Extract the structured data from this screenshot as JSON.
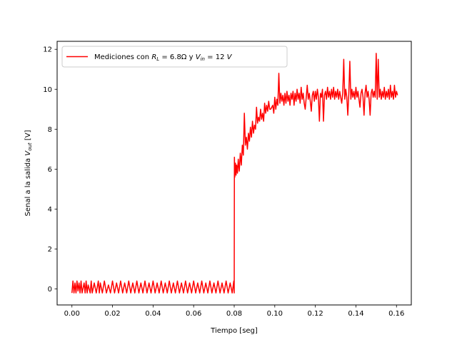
{
  "chart_data": {
    "type": "line",
    "title": "",
    "xlabel": "Tiempo [seg]",
    "ylabel_parts": [
      "Senal a la salida ",
      "V",
      "out",
      " [V]"
    ],
    "legend": {
      "placement": "upper-left",
      "parts": [
        "Mediciones con ",
        "R",
        "L",
        " = 6.8Ω y ",
        "V",
        "in",
        " = 12 ",
        "V"
      ]
    },
    "xlim": [
      -0.0073,
      0.1673
    ],
    "ylim": [
      -0.8,
      12.4
    ],
    "x_ticks": [
      0.0,
      0.02,
      0.04,
      0.06,
      0.08,
      0.1,
      0.12,
      0.14,
      0.16
    ],
    "x_tick_labels": [
      "0.00",
      "0.02",
      "0.04",
      "0.06",
      "0.08",
      "0.10",
      "0.12",
      "0.14",
      "0.16"
    ],
    "y_ticks": [
      0,
      2,
      4,
      6,
      8,
      10,
      12
    ],
    "y_tick_labels": [
      "0",
      "2",
      "4",
      "6",
      "8",
      "10",
      "12"
    ],
    "grid": false,
    "series": [
      {
        "name": "Mediciones con R_L = 6.8Ω y V_in = 12 V",
        "color": "#ff0000",
        "points": [
          [
            0.0,
            -0.2
          ],
          [
            0.0005,
            0.4
          ],
          [
            0.001,
            -0.2
          ],
          [
            0.0015,
            0.3
          ],
          [
            0.002,
            -0.2
          ],
          [
            0.0025,
            0.4
          ],
          [
            0.003,
            -0.1
          ],
          [
            0.0035,
            0.3
          ],
          [
            0.004,
            -0.2
          ],
          [
            0.0045,
            0.4
          ],
          [
            0.005,
            -0.2
          ],
          [
            0.006,
            0.3
          ],
          [
            0.0065,
            -0.2
          ],
          [
            0.007,
            0.4
          ],
          [
            0.0075,
            -0.2
          ],
          [
            0.008,
            0.2
          ],
          [
            0.009,
            -0.2
          ],
          [
            0.0095,
            0.4
          ],
          [
            0.01,
            -0.2
          ],
          [
            0.011,
            0.3
          ],
          [
            0.012,
            -0.2
          ],
          [
            0.013,
            0.4
          ],
          [
            0.0135,
            -0.2
          ],
          [
            0.014,
            0.3
          ],
          [
            0.015,
            -0.2
          ],
          [
            0.016,
            0.4
          ],
          [
            0.017,
            -0.2
          ],
          [
            0.018,
            0.2
          ],
          [
            0.019,
            -0.2
          ],
          [
            0.02,
            0.4
          ],
          [
            0.021,
            -0.2
          ],
          [
            0.022,
            0.3
          ],
          [
            0.023,
            -0.2
          ],
          [
            0.024,
            0.4
          ],
          [
            0.025,
            -0.2
          ],
          [
            0.026,
            0.3
          ],
          [
            0.027,
            -0.2
          ],
          [
            0.028,
            0.4
          ],
          [
            0.029,
            -0.2
          ],
          [
            0.03,
            0.3
          ],
          [
            0.031,
            -0.2
          ],
          [
            0.032,
            0.4
          ],
          [
            0.033,
            -0.2
          ],
          [
            0.034,
            0.3
          ],
          [
            0.035,
            -0.2
          ],
          [
            0.036,
            0.4
          ],
          [
            0.037,
            -0.2
          ],
          [
            0.038,
            0.3
          ],
          [
            0.039,
            -0.2
          ],
          [
            0.04,
            0.4
          ],
          [
            0.041,
            -0.2
          ],
          [
            0.042,
            0.3
          ],
          [
            0.043,
            -0.2
          ],
          [
            0.044,
            0.4
          ],
          [
            0.045,
            -0.2
          ],
          [
            0.046,
            0.3
          ],
          [
            0.047,
            -0.2
          ],
          [
            0.048,
            0.4
          ],
          [
            0.049,
            -0.2
          ],
          [
            0.05,
            0.3
          ],
          [
            0.051,
            -0.2
          ],
          [
            0.052,
            0.4
          ],
          [
            0.053,
            -0.2
          ],
          [
            0.054,
            0.3
          ],
          [
            0.055,
            -0.2
          ],
          [
            0.056,
            0.4
          ],
          [
            0.057,
            -0.2
          ],
          [
            0.058,
            0.3
          ],
          [
            0.059,
            -0.2
          ],
          [
            0.06,
            0.4
          ],
          [
            0.061,
            -0.2
          ],
          [
            0.062,
            0.3
          ],
          [
            0.063,
            -0.2
          ],
          [
            0.064,
            0.4
          ],
          [
            0.065,
            -0.2
          ],
          [
            0.066,
            0.3
          ],
          [
            0.067,
            -0.2
          ],
          [
            0.068,
            0.4
          ],
          [
            0.069,
            -0.2
          ],
          [
            0.07,
            0.3
          ],
          [
            0.071,
            -0.2
          ],
          [
            0.072,
            0.4
          ],
          [
            0.073,
            -0.2
          ],
          [
            0.074,
            0.3
          ],
          [
            0.075,
            -0.2
          ],
          [
            0.076,
            0.4
          ],
          [
            0.077,
            -0.2
          ],
          [
            0.078,
            0.3
          ],
          [
            0.079,
            -0.2
          ],
          [
            0.0798,
            0.4
          ],
          [
            0.08,
            -0.2
          ],
          [
            0.0801,
            6.6
          ],
          [
            0.0803,
            5.6
          ],
          [
            0.0806,
            6.3
          ],
          [
            0.0809,
            5.7
          ],
          [
            0.0812,
            6.2
          ],
          [
            0.0816,
            5.8
          ],
          [
            0.082,
            6.5
          ],
          [
            0.0825,
            5.9
          ],
          [
            0.083,
            6.8
          ],
          [
            0.0835,
            6.2
          ],
          [
            0.084,
            7.2
          ],
          [
            0.0845,
            6.7
          ],
          [
            0.085,
            8.8
          ],
          [
            0.0855,
            7.2
          ],
          [
            0.086,
            7.6
          ],
          [
            0.0865,
            7.0
          ],
          [
            0.087,
            7.8
          ],
          [
            0.0875,
            7.4
          ],
          [
            0.088,
            8.1
          ],
          [
            0.0885,
            7.6
          ],
          [
            0.089,
            8.4
          ],
          [
            0.0895,
            7.8
          ],
          [
            0.09,
            8.2
          ],
          [
            0.0905,
            8.0
          ],
          [
            0.091,
            9.1
          ],
          [
            0.0915,
            8.3
          ],
          [
            0.092,
            8.6
          ],
          [
            0.0925,
            8.4
          ],
          [
            0.093,
            9.0
          ],
          [
            0.0935,
            8.5
          ],
          [
            0.094,
            8.8
          ],
          [
            0.0945,
            8.4
          ],
          [
            0.095,
            9.3
          ],
          [
            0.0955,
            8.8
          ],
          [
            0.096,
            9.2
          ],
          [
            0.0965,
            8.9
          ],
          [
            0.097,
            9.4
          ],
          [
            0.0975,
            9.0
          ],
          [
            0.098,
            9.0
          ],
          [
            0.0985,
            9.1
          ],
          [
            0.099,
            9.2
          ],
          [
            0.0995,
            8.8
          ],
          [
            0.1,
            9.6
          ],
          [
            0.1005,
            9.0
          ],
          [
            0.101,
            9.5
          ],
          [
            0.1015,
            9.2
          ],
          [
            0.102,
            10.8
          ],
          [
            0.1025,
            9.3
          ],
          [
            0.103,
            9.8
          ],
          [
            0.1035,
            9.4
          ],
          [
            0.104,
            9.7
          ],
          [
            0.1045,
            9.2
          ],
          [
            0.105,
            9.8
          ],
          [
            0.1055,
            9.3
          ],
          [
            0.106,
            9.9
          ],
          [
            0.1065,
            9.4
          ],
          [
            0.107,
            9.7
          ],
          [
            0.1075,
            9.2
          ],
          [
            0.108,
            9.8
          ],
          [
            0.1085,
            9.5
          ],
          [
            0.109,
            9.9
          ],
          [
            0.1095,
            9.2
          ],
          [
            0.11,
            9.8
          ],
          [
            0.1105,
            9.4
          ],
          [
            0.111,
            10.0
          ],
          [
            0.1115,
            9.5
          ],
          [
            0.112,
            9.8
          ],
          [
            0.1125,
            9.3
          ],
          [
            0.113,
            10.1
          ],
          [
            0.1135,
            9.5
          ],
          [
            0.114,
            9.8
          ],
          [
            0.1145,
            9.3
          ],
          [
            0.115,
            9.0
          ],
          [
            0.1155,
            9.6
          ],
          [
            0.116,
            10.2
          ],
          [
            0.1165,
            9.5
          ],
          [
            0.117,
            9.8
          ],
          [
            0.1175,
            9.4
          ],
          [
            0.118,
            8.9
          ],
          [
            0.1185,
            9.7
          ],
          [
            0.119,
            9.9
          ],
          [
            0.1195,
            9.4
          ],
          [
            0.12,
            9.9
          ],
          [
            0.1205,
            9.5
          ],
          [
            0.121,
            10.0
          ],
          [
            0.1215,
            9.6
          ],
          [
            0.122,
            8.4
          ],
          [
            0.1225,
            9.8
          ],
          [
            0.123,
            9.6
          ],
          [
            0.1235,
            10.0
          ],
          [
            0.124,
            8.4
          ],
          [
            0.1245,
            9.7
          ],
          [
            0.125,
            9.9
          ],
          [
            0.1255,
            9.5
          ],
          [
            0.126,
            10.1
          ],
          [
            0.1265,
            9.6
          ],
          [
            0.127,
            9.9
          ],
          [
            0.1275,
            9.5
          ],
          [
            0.128,
            10.0
          ],
          [
            0.1285,
            9.6
          ],
          [
            0.129,
            10.1
          ],
          [
            0.1295,
            9.5
          ],
          [
            0.13,
            9.9
          ],
          [
            0.1305,
            9.6
          ],
          [
            0.131,
            10.0
          ],
          [
            0.1315,
            9.5
          ],
          [
            0.132,
            9.9
          ],
          [
            0.1325,
            9.6
          ],
          [
            0.133,
            9.3
          ],
          [
            0.1335,
            9.8
          ],
          [
            0.134,
            11.5
          ],
          [
            0.1345,
            9.5
          ],
          [
            0.135,
            10.0
          ],
          [
            0.1355,
            9.6
          ],
          [
            0.136,
            8.7
          ],
          [
            0.1365,
            9.8
          ],
          [
            0.137,
            11.4
          ],
          [
            0.1375,
            9.5
          ],
          [
            0.138,
            10.0
          ],
          [
            0.1385,
            9.6
          ],
          [
            0.139,
            9.9
          ],
          [
            0.1395,
            9.5
          ],
          [
            0.14,
            10.1
          ],
          [
            0.1405,
            9.6
          ],
          [
            0.141,
            9.9
          ],
          [
            0.1415,
            9.5
          ],
          [
            0.142,
            9.1
          ],
          [
            0.1425,
            9.8
          ],
          [
            0.143,
            10.0
          ],
          [
            0.1435,
            9.6
          ],
          [
            0.144,
            8.7
          ],
          [
            0.1445,
            9.8
          ],
          [
            0.145,
            10.2
          ],
          [
            0.1455,
            9.6
          ],
          [
            0.146,
            9.9
          ],
          [
            0.1465,
            9.5
          ],
          [
            0.147,
            8.7
          ],
          [
            0.1475,
            9.8
          ],
          [
            0.148,
            10.0
          ],
          [
            0.1485,
            9.6
          ],
          [
            0.149,
            9.9
          ],
          [
            0.1495,
            9.6
          ],
          [
            0.15,
            11.8
          ],
          [
            0.1505,
            9.5
          ],
          [
            0.151,
            11.5
          ],
          [
            0.1515,
            9.6
          ],
          [
            0.152,
            10.0
          ],
          [
            0.1525,
            9.5
          ],
          [
            0.153,
            9.9
          ],
          [
            0.1535,
            9.6
          ],
          [
            0.154,
            10.1
          ],
          [
            0.1545,
            9.5
          ],
          [
            0.155,
            9.9
          ],
          [
            0.1555,
            9.6
          ],
          [
            0.156,
            10.0
          ],
          [
            0.1565,
            9.5
          ],
          [
            0.157,
            10.2
          ],
          [
            0.1575,
            9.6
          ],
          [
            0.158,
            9.9
          ],
          [
            0.1585,
            9.5
          ],
          [
            0.159,
            10.2
          ],
          [
            0.1595,
            9.6
          ],
          [
            0.16,
            9.9
          ],
          [
            0.1605,
            9.7
          ]
        ]
      }
    ]
  }
}
